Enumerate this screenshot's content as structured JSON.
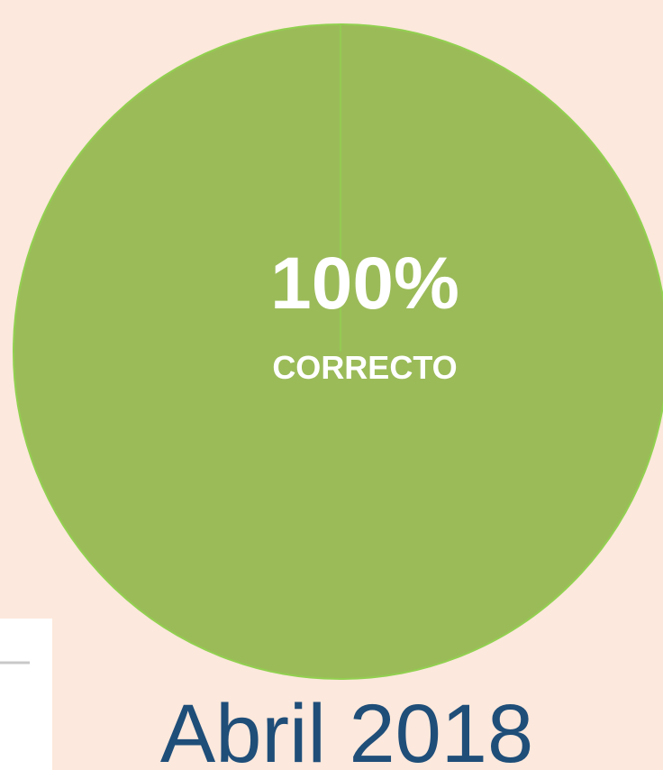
{
  "chart_data": {
    "type": "pie",
    "title": "Abril 2018",
    "categories": [
      "CORRECTO"
    ],
    "values": [
      100
    ],
    "value_labels": [
      "100%"
    ],
    "colors": [
      "#9bbb59"
    ]
  }
}
